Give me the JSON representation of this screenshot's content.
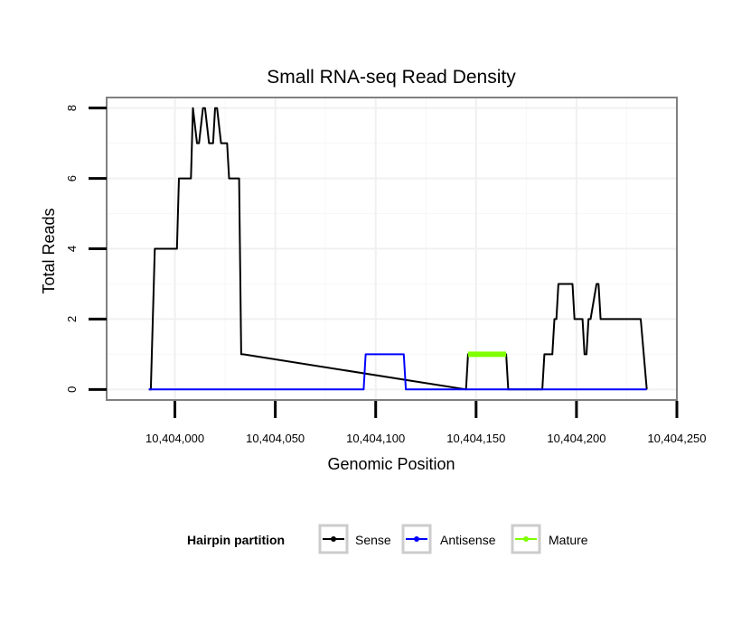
{
  "chart_data": {
    "type": "line",
    "title": "Small RNA-seq Read Density",
    "xlabel": "Genomic Position",
    "ylabel": "Total Reads",
    "xlim": [
      10403966,
      10404250
    ],
    "ylim": [
      -0.3,
      8.3
    ],
    "x_ticks": [
      10404000,
      10404050,
      10404100,
      10404150,
      10404200,
      10404250
    ],
    "x_tick_labels": [
      "10,404,000",
      "10,404,050",
      "10,404,100",
      "10,404,150",
      "10,404,200",
      "10,404,250"
    ],
    "y_ticks": [
      0,
      2,
      4,
      6,
      8
    ],
    "y_tick_labels": [
      "0",
      "2",
      "4",
      "6",
      "8"
    ],
    "grid": true,
    "legend": {
      "title": "Hairpin partition",
      "position": "bottom",
      "entries": [
        "Sense",
        "Antisense",
        "Mature"
      ]
    },
    "series": [
      {
        "name": "Sense",
        "color": "#000000",
        "x": [
          10403987,
          10403988,
          10403989,
          10403990,
          10403994,
          10404001,
          10404002,
          10404004,
          10404008,
          10404009,
          10404011,
          10404012,
          10404014,
          10404015,
          10404017,
          10404019,
          10404020,
          10404021,
          10404023,
          10404026,
          10404027,
          10404030,
          10404032,
          10404033,
          10404034,
          10404145,
          10404146,
          10404165,
          10404166,
          10404183,
          10404184,
          10404188,
          10404189,
          10404190,
          10404191,
          10404192,
          10404198,
          10404199,
          10404203,
          10404204,
          10404205,
          10404206,
          10404207,
          10404210,
          10404211,
          10404212,
          10404213,
          10404214,
          10404221,
          10404232,
          10404235
        ],
        "y": [
          0,
          0,
          2,
          4,
          4,
          4,
          6,
          6,
          6,
          8,
          7,
          7,
          8,
          8,
          7,
          7,
          8,
          8,
          7,
          7,
          6,
          6,
          6,
          1,
          1,
          0,
          1,
          1,
          0,
          0,
          1,
          1,
          2,
          2,
          3,
          3,
          3,
          2,
          2,
          1,
          1,
          2,
          2,
          3,
          3,
          2,
          2,
          2,
          2,
          2,
          0
        ]
      },
      {
        "name": "Antisense",
        "color": "#0000ff",
        "x": [
          10403987,
          10404094,
          10404095,
          10404114,
          10404115,
          10404235
        ],
        "y": [
          0,
          0,
          1,
          1,
          0,
          0
        ]
      },
      {
        "name": "Mature",
        "color": "#7fff00",
        "x": [
          10404146,
          10404165
        ],
        "y": [
          1,
          1
        ]
      }
    ]
  }
}
